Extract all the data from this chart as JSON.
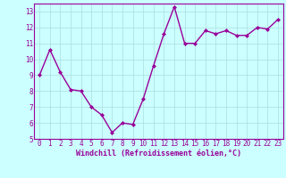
{
  "x": [
    0,
    1,
    2,
    3,
    4,
    5,
    6,
    7,
    8,
    9,
    10,
    11,
    12,
    13,
    14,
    15,
    16,
    17,
    18,
    19,
    20,
    21,
    22,
    23
  ],
  "y": [
    9.0,
    10.6,
    9.2,
    8.1,
    8.0,
    7.0,
    6.5,
    5.4,
    6.0,
    5.9,
    7.5,
    9.6,
    11.6,
    13.3,
    11.0,
    11.0,
    11.8,
    11.6,
    11.8,
    11.5,
    11.5,
    12.0,
    11.9,
    12.5
  ],
  "line_color": "#990099",
  "marker": "D",
  "marker_size": 2.0,
  "bg_color": "#ccffff",
  "grid_color": "#aadddd",
  "xlabel": "Windchill (Refroidissement éolien,°C)",
  "xlim": [
    -0.5,
    23.5
  ],
  "ylim": [
    5,
    13.5
  ],
  "yticks": [
    5,
    6,
    7,
    8,
    9,
    10,
    11,
    12,
    13
  ],
  "xticks": [
    0,
    1,
    2,
    3,
    4,
    5,
    6,
    7,
    8,
    9,
    10,
    11,
    12,
    13,
    14,
    15,
    16,
    17,
    18,
    19,
    20,
    21,
    22,
    23
  ],
  "font_color": "#990099",
  "tick_font_size": 5.5,
  "label_font_size": 6.0,
  "line_width": 1.0
}
